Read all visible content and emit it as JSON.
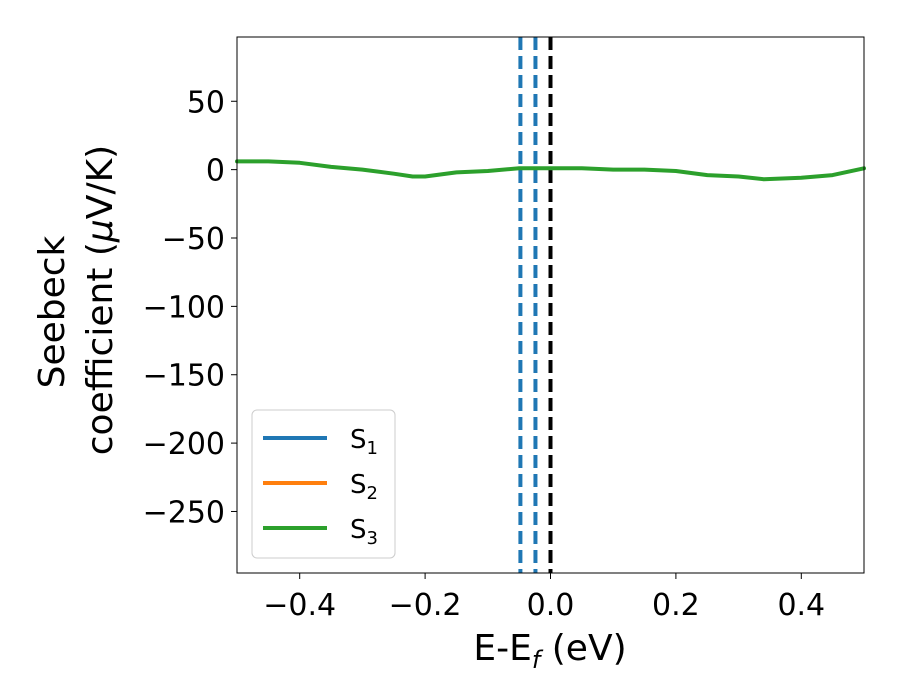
{
  "chart_data": {
    "type": "line",
    "xlabel": {
      "main": "E-E",
      "sub": "f",
      "suffix": " (eV)"
    },
    "ylabel": {
      "line1": "Seebeck",
      "line2": "coefficient  (",
      "mu": "μ",
      "line2_end": "V/K)"
    },
    "xlim": [
      -0.5,
      0.5
    ],
    "ylim": [
      -295,
      97
    ],
    "x_ticks": [
      -0.4,
      -0.2,
      0.0,
      0.2,
      0.4
    ],
    "x_tick_labels": [
      "−0.4",
      "−0.2",
      "0.0",
      "0.2",
      "0.4"
    ],
    "y_ticks": [
      50,
      0,
      -50,
      -100,
      -150,
      -200,
      -250
    ],
    "y_tick_labels": [
      "50",
      "0",
      "−50",
      "−100",
      "−150",
      "−200",
      "−250"
    ],
    "legend_position": "lower-left",
    "series": [
      {
        "name": "S",
        "sub": "1",
        "color": "#1f77b4",
        "x": [],
        "y": []
      },
      {
        "name": "S",
        "sub": "2",
        "color": "#ff7f0e",
        "x": [],
        "y": []
      },
      {
        "name": "S",
        "sub": "3",
        "color": "#2ca02c",
        "x": [
          -0.5,
          -0.45,
          -0.4,
          -0.35,
          -0.3,
          -0.25,
          -0.22,
          -0.2,
          -0.15,
          -0.1,
          -0.05,
          0.0,
          0.05,
          0.1,
          0.15,
          0.2,
          0.25,
          0.3,
          0.34,
          0.4,
          0.45,
          0.5
        ],
        "y": [
          6,
          6,
          5,
          2,
          0,
          -3,
          -5,
          -5,
          -2,
          -1,
          1,
          1,
          1,
          0,
          0,
          -1,
          -4,
          -5,
          -7,
          -6,
          -4,
          1
        ]
      }
    ],
    "vertical_lines": [
      {
        "x": -0.048,
        "color": "#1f77b4",
        "style": "dashed"
      },
      {
        "x": -0.024,
        "color": "#1f77b4",
        "style": "dashed"
      },
      {
        "x": 0.0,
        "color": "#000000",
        "style": "dashed"
      }
    ]
  }
}
